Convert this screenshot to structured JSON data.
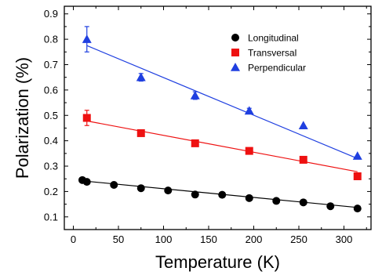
{
  "chart_data": {
    "type": "scatter",
    "title": "",
    "xlabel": "Temperature (K)",
    "ylabel": "Polarization (%)",
    "xlim": [
      -10,
      330
    ],
    "ylim": [
      0.05,
      0.93
    ],
    "x_ticks": [
      "0",
      "50",
      "100",
      "150",
      "200",
      "250",
      "300"
    ],
    "x_tick_values": [
      0,
      50,
      100,
      150,
      200,
      250,
      300
    ],
    "y_ticks": [
      "0.1",
      "0.2",
      "0.3",
      "0.4",
      "0.5",
      "0.6",
      "0.7",
      "0.8",
      "0.9"
    ],
    "y_tick_values": [
      0.1,
      0.2,
      0.3,
      0.4,
      0.5,
      0.6,
      0.7,
      0.8,
      0.9
    ],
    "grid": false,
    "legend_position": "top-right",
    "series": [
      {
        "name": "Longitudinal",
        "marker": "circle",
        "color": "#000000",
        "x": [
          10,
          15,
          45,
          75,
          105,
          135,
          165,
          195,
          225,
          255,
          285,
          315
        ],
        "y": [
          0.245,
          0.238,
          0.226,
          0.213,
          0.204,
          0.188,
          0.187,
          0.174,
          0.163,
          0.157,
          0.142,
          0.133
        ],
        "errors": [],
        "fit": {
          "x": [
            10,
            315
          ],
          "y": [
            0.242,
            0.137
          ]
        }
      },
      {
        "name": "Transversal",
        "marker": "square",
        "color": "#ee1111",
        "x": [
          15,
          75,
          135,
          195,
          255,
          315
        ],
        "y": [
          0.49,
          0.43,
          0.39,
          0.36,
          0.325,
          0.26
        ],
        "errors": [
          0.03,
          0,
          0,
          0,
          0,
          0
        ],
        "fit": {
          "x": [
            15,
            315
          ],
          "y": [
            0.478,
            0.278
          ]
        }
      },
      {
        "name": "Perpendicular",
        "marker": "triangle",
        "color": "#1f3fe0",
        "x": [
          15,
          75,
          135,
          195,
          255,
          315
        ],
        "y": [
          0.8,
          0.65,
          0.578,
          0.518,
          0.46,
          0.34
        ],
        "errors": [
          0.05,
          0.015,
          0.015,
          0.01,
          0,
          0
        ],
        "fit": {
          "x": [
            15,
            315
          ],
          "y": [
            0.775,
            0.33
          ]
        }
      }
    ]
  }
}
